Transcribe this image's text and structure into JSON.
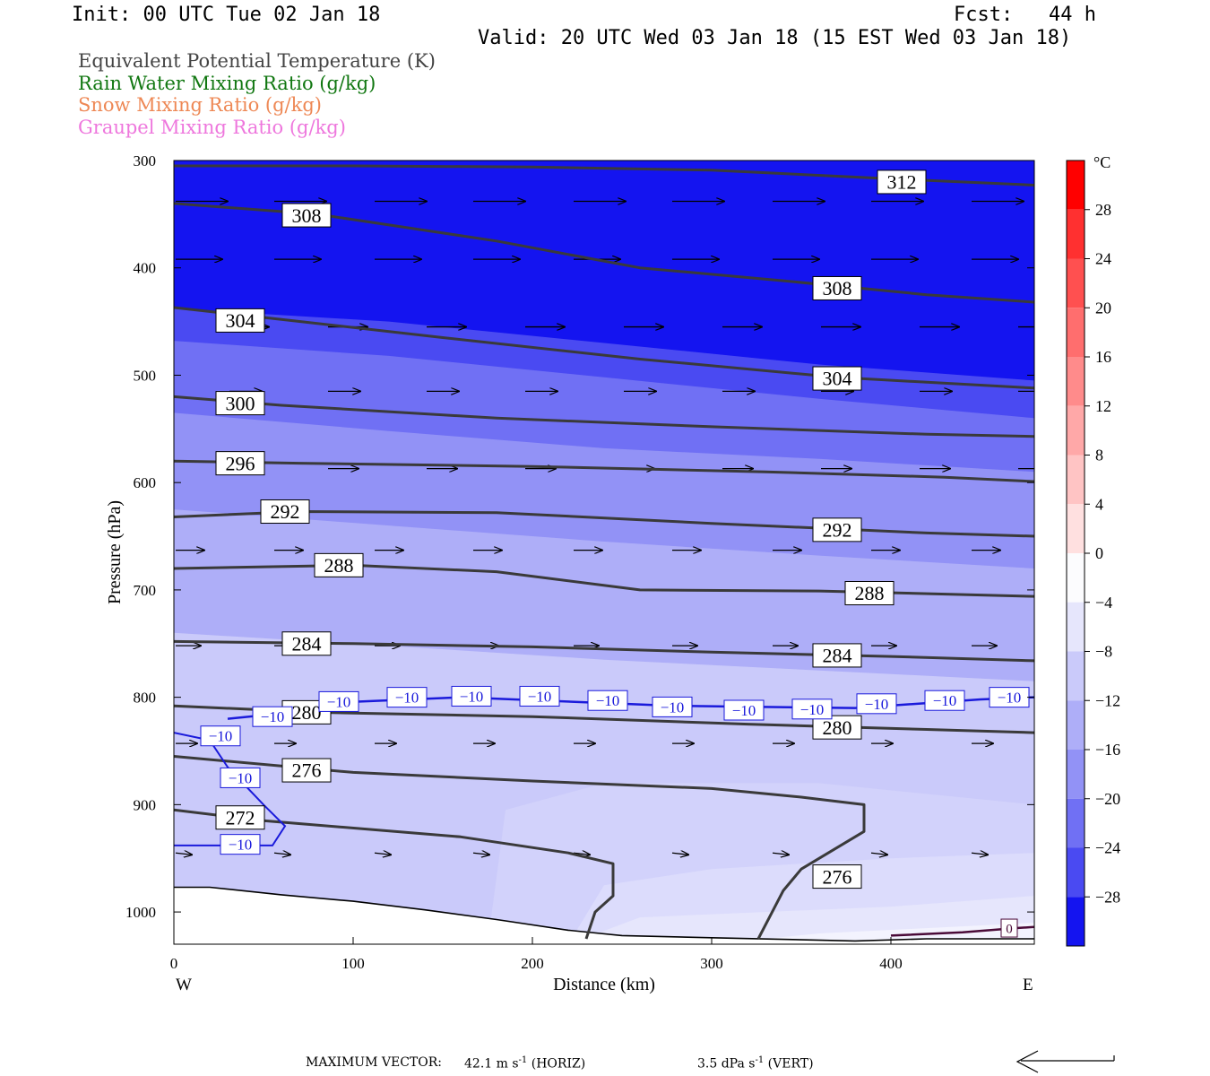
{
  "header": {
    "init": "Init: 00 UTC Tue 02 Jan 18",
    "fcst": "Fcst:   44 h",
    "valid": "Valid: 20 UTC Wed 03 Jan 18 (15 EST Wed 03 Jan 18)"
  },
  "legend": [
    {
      "label": "Equivalent Potential Temperature (K)",
      "color": "#444444"
    },
    {
      "label": "Rain Water Mixing Ratio (g/kg)",
      "color": "#117711"
    },
    {
      "label": "Snow Mixing Ratio (g/kg)",
      "color": "#ee8855"
    },
    {
      "label": "Graupel Mixing Ratio (g/kg)",
      "color": "#ee77dd"
    }
  ],
  "footer": {
    "max_vector_label": "MAXIMUM VECTOR:",
    "horiz_value": "42.1 m s",
    "horiz_exp": "-1",
    "horiz_tag": "(HORIZ)",
    "vert_value": "3.5 dPa s",
    "vert_exp": "-1",
    "vert_tag": "(VERT)"
  },
  "chart_data": {
    "type": "cross-section",
    "xlabel": "Distance (km)",
    "ylabel": "Pressure (hPa)",
    "xlim": [
      0,
      480
    ],
    "ylim": [
      300,
      1030
    ],
    "x_ticks": [
      0,
      100,
      200,
      300,
      400
    ],
    "y_ticks": [
      300,
      400,
      500,
      600,
      700,
      800,
      900,
      1000
    ],
    "west_label": "W",
    "east_label": "E",
    "colorbar": {
      "unit": "°C",
      "labels": [
        28,
        24,
        20,
        16,
        12,
        8,
        4,
        0,
        -4,
        -8,
        -12,
        -16,
        -20,
        -24,
        -28
      ],
      "levels": [
        {
          "min": 28,
          "max": 32,
          "color": "#ff0000"
        },
        {
          "min": 24,
          "max": 28,
          "color": "#ff3030"
        },
        {
          "min": 20,
          "max": 24,
          "color": "#ff5050"
        },
        {
          "min": 16,
          "max": 20,
          "color": "#ff6e6e"
        },
        {
          "min": 12,
          "max": 16,
          "color": "#ff8b8b"
        },
        {
          "min": 8,
          "max": 12,
          "color": "#ffa8a8"
        },
        {
          "min": 4,
          "max": 8,
          "color": "#ffc4c4"
        },
        {
          "min": 0,
          "max": 4,
          "color": "#ffe0e0"
        },
        {
          "min": -4,
          "max": 0,
          "color": "#fcfcfe"
        },
        {
          "min": -8,
          "max": -4,
          "color": "#e6e6fc"
        },
        {
          "min": -12,
          "max": -8,
          "color": "#cacafa"
        },
        {
          "min": -16,
          "max": -12,
          "color": "#aeaef8"
        },
        {
          "min": -20,
          "max": -16,
          "color": "#9292f6"
        },
        {
          "min": -24,
          "max": -20,
          "color": "#7070f4"
        },
        {
          "min": -28,
          "max": -24,
          "color": "#4a4af2"
        },
        {
          "min": -32,
          "max": -28,
          "color": "#1414f0"
        }
      ]
    },
    "temperature_layers": [
      {
        "temp": -32,
        "color": "#1414f0",
        "top": [
          [
            0,
            300
          ],
          [
            480,
            300
          ]
        ]
      },
      {
        "temp": -28,
        "color": "#4a4af2",
        "top": [
          [
            0,
            438
          ],
          [
            120,
            450
          ],
          [
            240,
            470
          ],
          [
            360,
            490
          ],
          [
            480,
            505
          ]
        ]
      },
      {
        "temp": -24,
        "color": "#7070f4",
        "top": [
          [
            0,
            468
          ],
          [
            120,
            482
          ],
          [
            240,
            502
          ],
          [
            360,
            522
          ],
          [
            480,
            540
          ]
        ]
      },
      {
        "temp": -20,
        "color": "#9292f6",
        "top": [
          [
            0,
            535
          ],
          [
            120,
            552
          ],
          [
            240,
            568
          ],
          [
            360,
            578
          ],
          [
            480,
            590
          ]
        ]
      },
      {
        "temp": -16,
        "color": "#aeaef8",
        "top": [
          [
            0,
            625
          ],
          [
            120,
            640
          ],
          [
            240,
            655
          ],
          [
            360,
            668
          ],
          [
            480,
            680
          ]
        ]
      },
      {
        "temp": -12,
        "color": "#cacafa",
        "top": [
          [
            0,
            740
          ],
          [
            120,
            752
          ],
          [
            240,
            765
          ],
          [
            360,
            775
          ],
          [
            480,
            785
          ]
        ]
      },
      {
        "temp": -8,
        "color": "#d2d2fb",
        "top": [
          [
            0,
            1030
          ],
          [
            175,
            1030
          ],
          [
            185,
            905
          ],
          [
            240,
            880
          ],
          [
            360,
            880
          ],
          [
            480,
            900
          ]
        ]
      },
      {
        "temp": -6,
        "color": "#dcdcfc",
        "top": [
          [
            0,
            1030
          ],
          [
            220,
            1030
          ],
          [
            240,
            975
          ],
          [
            300,
            960
          ],
          [
            400,
            950
          ],
          [
            480,
            945
          ]
        ]
      },
      {
        "temp": -4,
        "color": "#e6e6fc",
        "top": [
          [
            0,
            1030
          ],
          [
            220,
            1030
          ],
          [
            260,
            1005
          ],
          [
            400,
            995
          ],
          [
            480,
            985
          ]
        ]
      },
      {
        "temp": -2,
        "color": "#f3f3fe",
        "top": [
          [
            0,
            1030
          ],
          [
            300,
            1030
          ],
          [
            360,
            1020
          ],
          [
            480,
            1010
          ]
        ]
      }
    ],
    "terrain_surface": [
      [
        0,
        977
      ],
      [
        20,
        977
      ],
      [
        60,
        984
      ],
      [
        100,
        990
      ],
      [
        140,
        998
      ],
      [
        180,
        1007
      ],
      [
        220,
        1017
      ],
      [
        250,
        1022
      ],
      [
        300,
        1024
      ],
      [
        380,
        1027
      ],
      [
        420,
        1025
      ],
      [
        480,
        1025
      ]
    ],
    "theta_e_contours": [
      {
        "level": "312",
        "points": [
          [
            0,
            305
          ],
          [
            100,
            305
          ],
          [
            200,
            306
          ],
          [
            300,
            309
          ],
          [
            400,
            317
          ],
          [
            480,
            323
          ]
        ],
        "labels": [
          [
            406,
            320
          ]
        ]
      },
      {
        "level": "308",
        "points": [
          [
            0,
            340
          ],
          [
            80,
            350
          ],
          [
            180,
            375
          ],
          [
            260,
            400
          ],
          [
            340,
            412
          ],
          [
            420,
            425
          ],
          [
            480,
            432
          ]
        ],
        "labels": [
          [
            74,
            351
          ],
          [
            370,
            419
          ]
        ]
      },
      {
        "level": "304",
        "points": [
          [
            0,
            437
          ],
          [
            60,
            448
          ],
          [
            150,
            465
          ],
          [
            260,
            485
          ],
          [
            370,
            502
          ],
          [
            480,
            512
          ]
        ],
        "labels": [
          [
            37,
            449
          ],
          [
            370,
            503
          ]
        ]
      },
      {
        "level": "300",
        "points": [
          [
            0,
            520
          ],
          [
            60,
            528
          ],
          [
            180,
            540
          ],
          [
            300,
            548
          ],
          [
            420,
            555
          ],
          [
            480,
            557
          ]
        ],
        "labels": [
          [
            37,
            526
          ]
        ]
      },
      {
        "level": "296",
        "points": [
          [
            0,
            580
          ],
          [
            70,
            582
          ],
          [
            200,
            585
          ],
          [
            330,
            590
          ],
          [
            430,
            595
          ],
          [
            480,
            599
          ]
        ],
        "labels": [
          [
            37,
            582
          ]
        ]
      },
      {
        "level": "292",
        "points": [
          [
            0,
            632
          ],
          [
            70,
            627
          ],
          [
            180,
            628
          ],
          [
            300,
            638
          ],
          [
            420,
            647
          ],
          [
            480,
            650
          ]
        ],
        "labels": [
          [
            62,
            627
          ],
          [
            370,
            644
          ]
        ]
      },
      {
        "level": "288",
        "points": [
          [
            0,
            680
          ],
          [
            100,
            677
          ],
          [
            180,
            683
          ],
          [
            260,
            700
          ],
          [
            360,
            701
          ],
          [
            480,
            706
          ]
        ],
        "labels": [
          [
            92,
            677
          ],
          [
            388,
            703
          ]
        ]
      },
      {
        "level": "284",
        "points": [
          [
            0,
            748
          ],
          [
            100,
            750
          ],
          [
            200,
            753
          ],
          [
            300,
            758
          ],
          [
            400,
            762
          ],
          [
            480,
            766
          ]
        ],
        "labels": [
          [
            74,
            750
          ],
          [
            370,
            761
          ]
        ]
      },
      {
        "level": "280",
        "points": [
          [
            0,
            808
          ],
          [
            80,
            814
          ],
          [
            200,
            818
          ],
          [
            320,
            825
          ],
          [
            420,
            830
          ],
          [
            480,
            833
          ]
        ],
        "labels": [
          [
            74,
            814
          ],
          [
            370,
            828
          ]
        ]
      },
      {
        "level": "276",
        "points": [
          [
            0,
            855
          ],
          [
            100,
            870
          ],
          [
            200,
            878
          ],
          [
            300,
            885
          ],
          [
            350,
            893
          ],
          [
            385,
            900
          ],
          [
            385,
            925
          ],
          [
            350,
            960
          ],
          [
            340,
            980
          ],
          [
            326,
            1025
          ]
        ],
        "labels": [
          [
            74,
            868
          ],
          [
            370,
            967
          ]
        ]
      },
      {
        "level": "272",
        "points": [
          [
            0,
            905
          ],
          [
            50,
            915
          ],
          [
            160,
            930
          ],
          [
            220,
            945
          ],
          [
            245,
            955
          ],
          [
            245,
            985
          ],
          [
            235,
            1000
          ],
          [
            230,
            1025
          ]
        ],
        "labels": [
          [
            37,
            912
          ]
        ]
      }
    ],
    "temp_minus10_line": {
      "points": [
        [
          0,
          938
        ],
        [
          55,
          938
        ],
        [
          62,
          920
        ],
        [
          50,
          900
        ],
        [
          30,
          865
        ],
        [
          20,
          840
        ],
        [
          0,
          833
        ]
      ],
      "upper_points": [
        [
          30,
          820
        ],
        [
          60,
          815
        ],
        [
          90,
          805
        ],
        [
          160,
          800
        ],
        [
          280,
          808
        ],
        [
          380,
          810
        ],
        [
          450,
          802
        ],
        [
          480,
          800
        ]
      ],
      "labels": [
        [
          37,
          937
        ],
        [
          37,
          875
        ],
        [
          26,
          836
        ],
        [
          55,
          818
        ],
        [
          92,
          804
        ],
        [
          130,
          800
        ],
        [
          166,
          799
        ],
        [
          204,
          799
        ],
        [
          242,
          803
        ],
        [
          278,
          809
        ],
        [
          318,
          812
        ],
        [
          356,
          811
        ],
        [
          392,
          806
        ],
        [
          430,
          803
        ],
        [
          466,
          800
        ]
      ],
      "text": "−10",
      "color": "#1a1adb"
    },
    "zero_line": {
      "points": [
        [
          400,
          1022
        ],
        [
          440,
          1019
        ],
        [
          470,
          1015
        ],
        [
          480,
          1014
        ]
      ],
      "label_at": [
        466,
        1015
      ],
      "text": "0",
      "color": "#4a0a38"
    },
    "wind_vectors": [
      {
        "p": 338,
        "xs": [
          0,
          55,
          111,
          166,
          222,
          277,
          333,
          388,
          444
        ],
        "len": 48
      },
      {
        "p": 392,
        "xs": [
          0,
          55,
          111,
          166,
          222,
          277,
          333,
          388,
          444
        ],
        "len": 42
      },
      {
        "p": 455,
        "xs": [
          30,
          85,
          140,
          195,
          250,
          305,
          360,
          415,
          470
        ],
        "len": 34
      },
      {
        "p": 515,
        "xs": [
          30,
          85,
          140,
          195,
          250,
          305,
          360,
          415,
          470
        ],
        "len": 26
      },
      {
        "p": 587,
        "xs": [
          30,
          85,
          140,
          195,
          250,
          305,
          360,
          415,
          470
        ],
        "len": 24
      },
      {
        "p": 663,
        "xs": [
          0,
          55,
          111,
          166,
          222,
          277,
          333,
          388,
          444
        ],
        "len": 22
      },
      {
        "p": 752,
        "xs": [
          0,
          55,
          111,
          166,
          222,
          277,
          333,
          388,
          444
        ],
        "len": 18
      },
      {
        "p": 843,
        "xs": [
          0,
          55,
          111,
          166,
          222,
          277,
          333,
          388,
          444
        ],
        "len": 14
      },
      {
        "p": 945,
        "xs": [
          0,
          55,
          111,
          166,
          222,
          277,
          333,
          388,
          444
        ],
        "len": 8
      }
    ]
  }
}
